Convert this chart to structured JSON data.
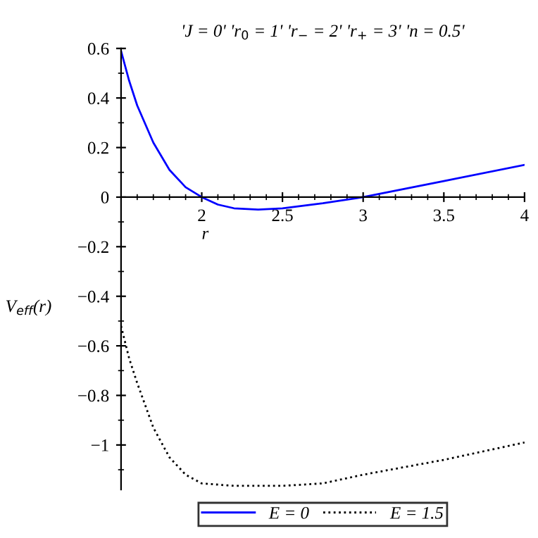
{
  "chart_data": {
    "type": "line",
    "title": "'J = 0' 'r$_{0}$ = 1' 'r$_{−}$ = 2' 'r$_{+}$ = 3' 'n = 0.5'",
    "xlabel": "r",
    "ylabel": "V$_{eff}$(r)",
    "x": [
      1.5,
      1.55,
      1.6,
      1.7,
      1.8,
      1.9,
      2.0,
      2.1,
      2.2,
      2.35,
      2.5,
      2.75,
      3.0,
      3.5,
      4.0
    ],
    "series": [
      {
        "name": "E = 0",
        "color": "#0000ff",
        "line_style": "solid",
        "values": [
          0.59,
          0.47,
          0.37,
          0.22,
          0.11,
          0.04,
          0,
          -0.03,
          -0.045,
          -0.05,
          -0.045,
          -0.025,
          0,
          0.065,
          0.13
        ]
      },
      {
        "name": "E = 1.5",
        "color": "#000000",
        "line_style": "dotted",
        "values": [
          -0.52,
          -0.65,
          -0.75,
          -0.93,
          -1.05,
          -1.12,
          -1.155,
          -1.16,
          -1.165,
          -1.165,
          -1.165,
          -1.155,
          -1.12,
          -1.06,
          -0.99
        ]
      }
    ],
    "xlim": [
      1.5,
      4
    ],
    "ylim": [
      -1.18,
      0.6
    ],
    "xticks": [
      2,
      2.5,
      3,
      3.5,
      4
    ],
    "yticks": [
      {
        "value": -1,
        "label": "−1"
      },
      {
        "value": -0.8,
        "label": "−0.8"
      },
      {
        "value": -0.6,
        "label": "−0.6"
      },
      {
        "value": -0.4,
        "label": "−0.4"
      },
      {
        "value": -0.2,
        "label": "−0.2"
      },
      0,
      0.2,
      0.4,
      0.6
    ],
    "legend": "bottom",
    "grid": false,
    "marker": "none"
  }
}
